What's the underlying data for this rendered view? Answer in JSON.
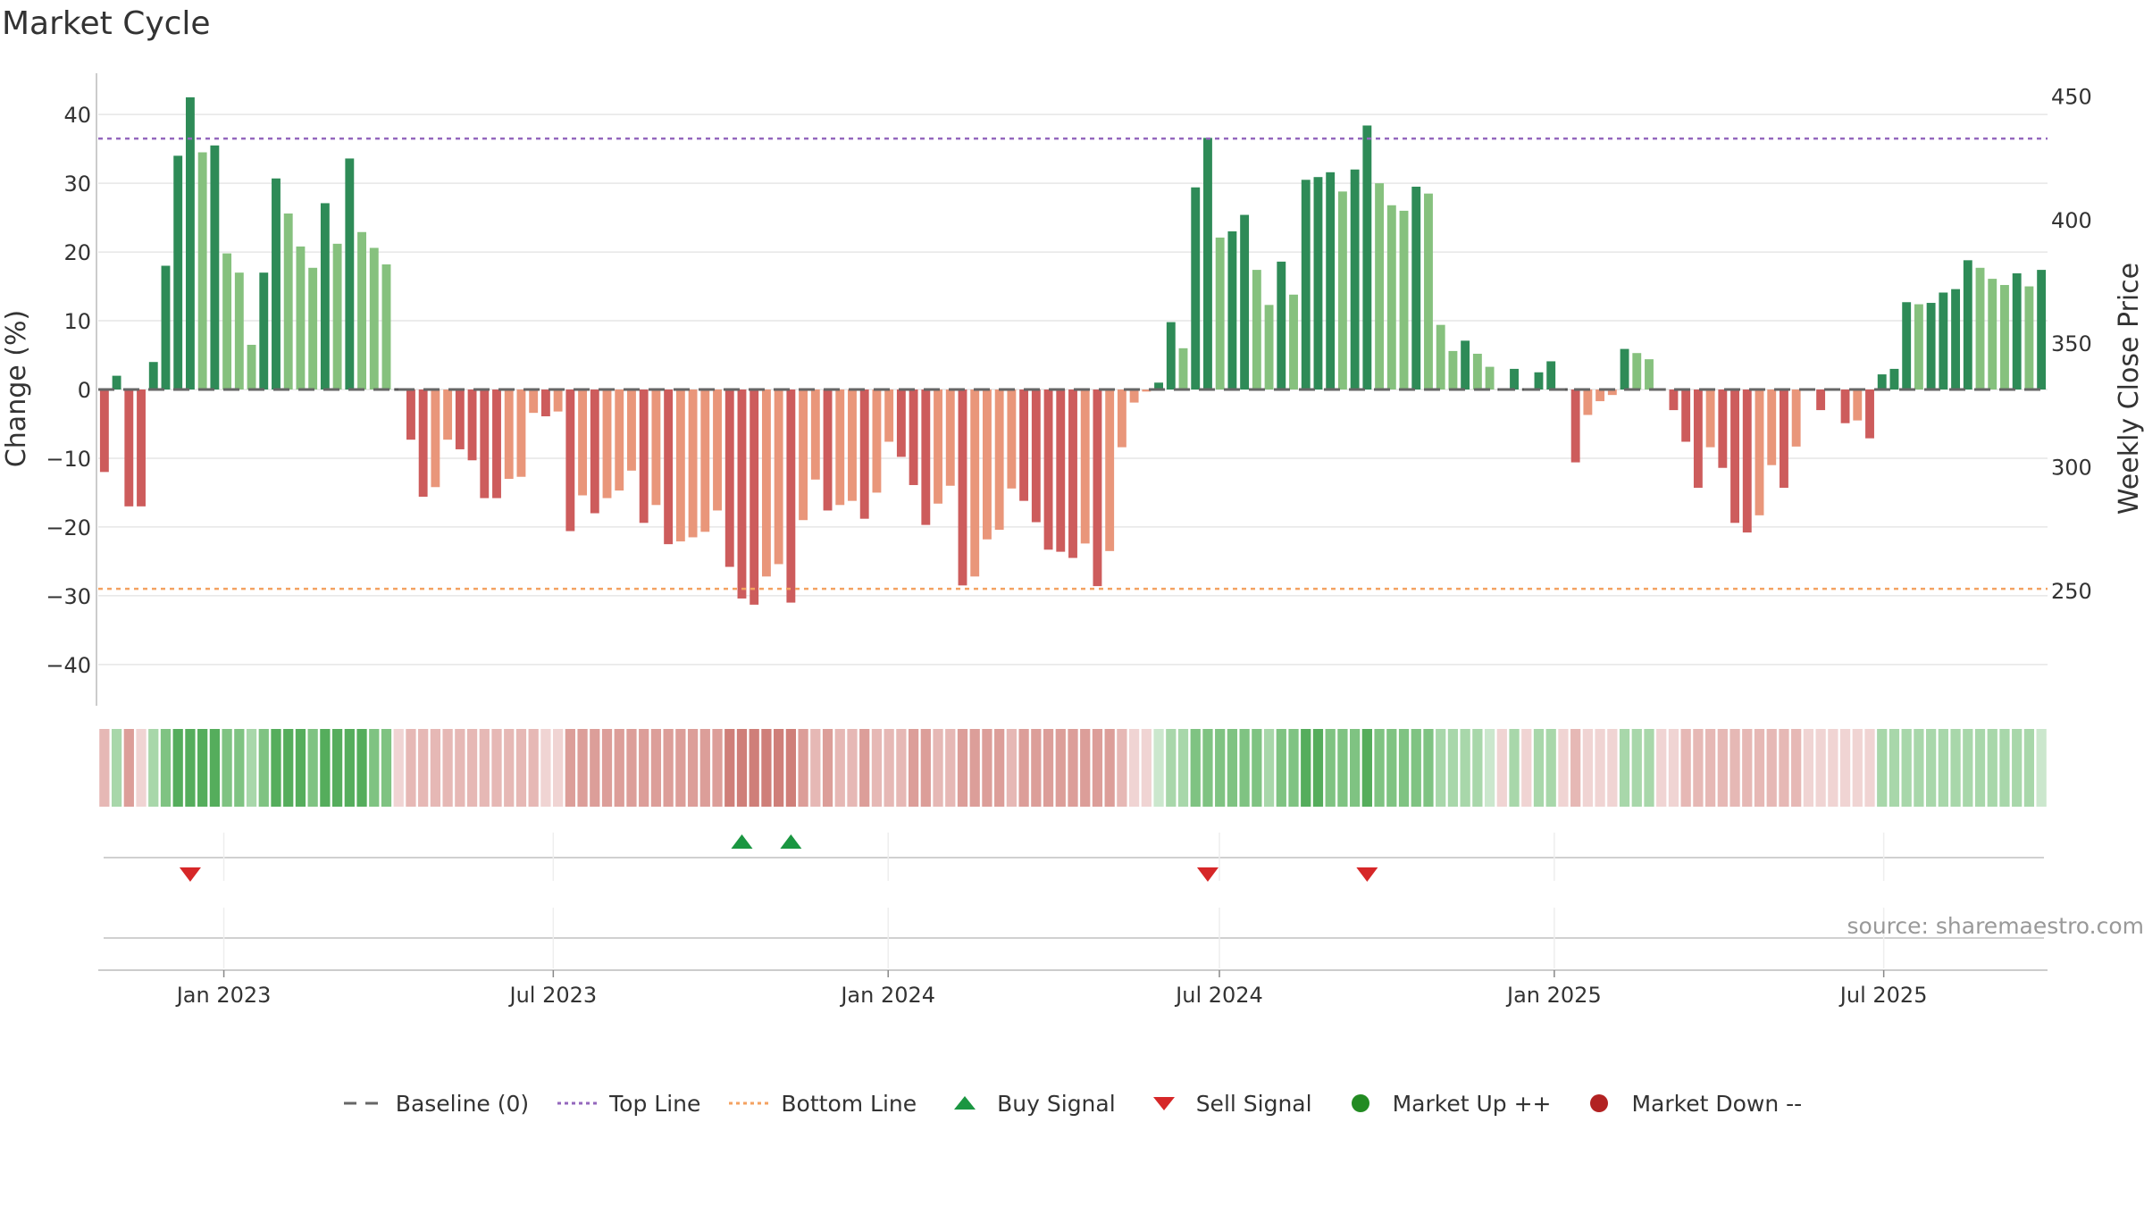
{
  "title": "Market Cycle",
  "source": "source: sharemaestro.com",
  "colors": {
    "up_strong": "#2e8b57",
    "up_weak": "#86c17e",
    "down_strong": "#cd5c5c",
    "down_weak": "#e9967a",
    "top_line": "#9467bd",
    "bottom_line": "#f4a261",
    "buy": "#1a9641",
    "sell": "#d62728",
    "market_up": "#228b22",
    "market_down": "#b22222",
    "baseline": "#666666"
  },
  "chart_data": {
    "type": "bar",
    "title": "Market Cycle",
    "ylabel": "Change (%)",
    "y2label": "Weekly Close Price",
    "ylim": [
      -46,
      46
    ],
    "y2lim": [
      203.3,
      459.2
    ],
    "yticks": [
      40,
      30,
      20,
      10,
      0,
      -10,
      -20,
      -30,
      -40
    ],
    "y2ticks": [
      450,
      400,
      350,
      300,
      250
    ],
    "x_start": "2022-10-24",
    "x_end": "2025-09-29",
    "xticks": [
      {
        "date": "2023-01-01",
        "label": "Jan 2023"
      },
      {
        "date": "2023-07-01",
        "label": "Jul 2023"
      },
      {
        "date": "2024-01-01",
        "label": "Jan 2024"
      },
      {
        "date": "2024-07-01",
        "label": "Jul 2024"
      },
      {
        "date": "2025-01-01",
        "label": "Jan 2025"
      },
      {
        "date": "2025-07-01",
        "label": "Jul 2025"
      }
    ],
    "top_line": 36.5,
    "bottom_line": -29,
    "weekly_change": [
      -12,
      2,
      -17,
      -17,
      4,
      18,
      34,
      42.5,
      34.5,
      35.5,
      19.8,
      17,
      6.5,
      17,
      30.7,
      25.6,
      20.8,
      17.7,
      27.1,
      21.2,
      33.6,
      22.9,
      20.6,
      18.2,
      0,
      -7.3,
      -15.6,
      -14.2,
      -7.3,
      -8.7,
      -10.3,
      -15.8,
      -15.8,
      -13,
      -12.7,
      -3.4,
      -3.9,
      -3.2,
      -20.6,
      -15.4,
      -18,
      -15.8,
      -14.7,
      -11.8,
      -19.4,
      -16.8,
      -22.5,
      -22.1,
      -21.5,
      -20.7,
      -17.6,
      -25.8,
      -30.4,
      -31.3,
      -27.2,
      -25.4,
      -31,
      -19,
      -13.1,
      -17.6,
      -16.8,
      -16.2,
      -18.8,
      -15,
      -7.6,
      -9.8,
      -13.9,
      -19.7,
      -16.6,
      -14,
      -28.5,
      -27.2,
      -21.8,
      -20.4,
      -14.4,
      -16.2,
      -19.3,
      -23.3,
      -23.6,
      -24.5,
      -22.4,
      -28.6,
      -23.5,
      -8.4,
      -1.9,
      -0.3,
      1,
      9.8,
      6,
      29.4,
      36.6,
      22.1,
      23,
      25.4,
      17.4,
      12.3,
      18.6,
      13.8,
      30.5,
      30.9,
      31.6,
      28.8,
      32,
      38.4,
      30,
      26.8,
      26,
      29.5,
      28.5,
      9.4,
      5.6,
      7.1,
      5.2,
      3.3,
      0,
      3,
      0,
      2.5,
      4.1,
      0,
      -10.6,
      -3.7,
      -1.7,
      -0.8,
      5.9,
      5.3,
      4.4,
      0,
      -3,
      -7.6,
      -14.3,
      -8.4,
      -11.4,
      -19.4,
      -20.8,
      -18.3,
      -11,
      -14.3,
      -8.3,
      0,
      -3,
      0,
      -4.9,
      -4.5,
      -7.1,
      2.2,
      3,
      12.7,
      12.4,
      12.6,
      14.1,
      14.6,
      18.8,
      17.7,
      16.1,
      15.2,
      16.9,
      15,
      17.4
    ],
    "strip_levels": [
      1,
      1,
      2,
      0,
      1,
      2,
      3,
      3,
      3,
      3,
      2,
      2,
      1,
      2,
      3,
      3,
      3,
      2,
      3,
      3,
      3,
      3,
      2,
      2,
      0,
      1,
      1,
      1,
      1,
      1,
      1,
      1,
      1,
      1,
      1,
      1,
      0,
      0,
      2,
      2,
      2,
      2,
      2,
      2,
      2,
      2,
      2,
      2,
      2,
      2,
      2,
      3,
      3,
      3,
      3,
      3,
      3,
      2,
      1,
      2,
      1,
      1,
      2,
      1,
      1,
      1,
      2,
      2,
      1,
      1,
      2,
      2,
      2,
      2,
      1,
      2,
      2,
      2,
      2,
      2,
      2,
      2,
      2,
      1,
      0,
      0,
      0,
      1,
      1,
      2,
      2,
      2,
      2,
      2,
      2,
      1,
      2,
      2,
      3,
      3,
      2,
      2,
      2,
      3,
      2,
      2,
      2,
      2,
      2,
      1,
      1,
      1,
      1,
      0,
      0,
      1,
      0,
      1,
      1,
      0,
      1,
      0,
      0,
      0,
      1,
      1,
      1,
      0,
      0,
      1,
      1,
      1,
      1,
      1,
      1,
      1,
      1,
      1,
      1,
      0,
      0,
      0,
      0,
      0,
      0,
      1,
      1,
      1,
      1,
      1,
      1,
      1,
      1,
      1,
      1,
      1,
      1,
      1
    ],
    "buy_signals": [
      52,
      56
    ],
    "sell_signals": [
      7,
      90,
      103
    ],
    "legend_position": "bottom",
    "grid": true
  },
  "legend": [
    {
      "label": "Baseline (0)",
      "kind": "dash",
      "color": "#666666"
    },
    {
      "label": "Top Line",
      "kind": "dot",
      "color": "#9467bd"
    },
    {
      "label": "Bottom Line",
      "kind": "dot",
      "color": "#f4a261"
    },
    {
      "label": "Buy Signal",
      "kind": "tri-up",
      "color": "#1a9641"
    },
    {
      "label": "Sell Signal",
      "kind": "tri-down",
      "color": "#d62728"
    },
    {
      "label": "Market Up ++",
      "kind": "circle",
      "color": "#228b22"
    },
    {
      "label": "Market Down --",
      "kind": "circle",
      "color": "#b22222"
    }
  ]
}
